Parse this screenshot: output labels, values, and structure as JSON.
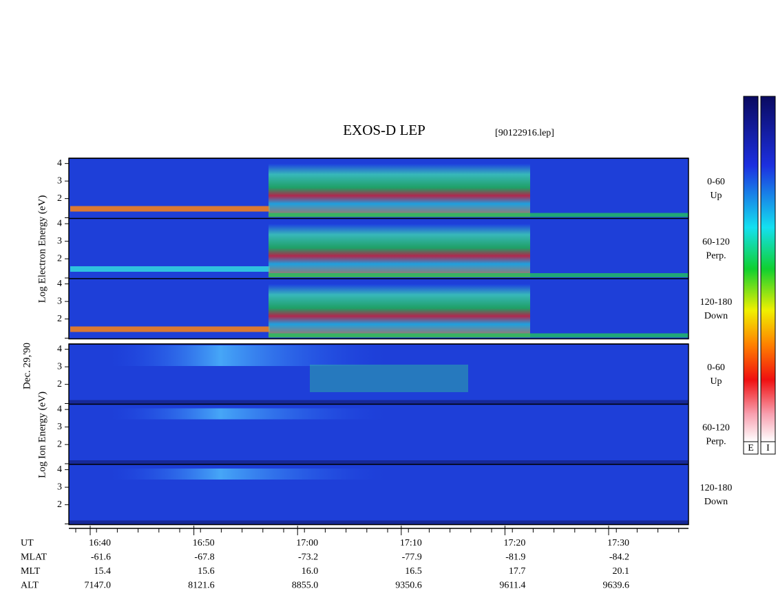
{
  "header": {
    "title": "EXOS-D LEP",
    "file": "[90122916.lep]",
    "date": "Dec. 29,'90"
  },
  "electron": {
    "ylabel": "Log Electron Energy (eV)",
    "panels": [
      {
        "label": [
          "0-60",
          "Up"
        ]
      },
      {
        "label": [
          "60-120",
          "Perp."
        ]
      },
      {
        "label": [
          "120-180",
          "Down"
        ]
      }
    ],
    "yticks": [
      2,
      3,
      4
    ]
  },
  "ion": {
    "ylabel": "Log Ion Energy (eV)",
    "panels": [
      {
        "label": [
          "0-60",
          "Up"
        ]
      },
      {
        "label": [
          "60-120",
          "Perp."
        ]
      },
      {
        "label": [
          "120-180",
          "Down"
        ]
      }
    ],
    "yticks": [
      2,
      3,
      4
    ]
  },
  "footer": {
    "rows": [
      {
        "name": "UT",
        "values": [
          "16:40",
          "16:50",
          "17:00",
          "17:10",
          "17:20",
          "17:30"
        ]
      },
      {
        "name": "MLAT",
        "values": [
          "-61.6",
          "-67.8",
          "-73.2",
          "-77.9",
          "-81.9",
          "-84.2"
        ]
      },
      {
        "name": "MLT",
        "values": [
          "15.4",
          "15.6",
          "16.0",
          "16.5",
          "17.7",
          "20.1"
        ]
      },
      {
        "name": "ALT",
        "values": [
          "7147.0",
          "8121.6",
          "8855.0",
          "9350.6",
          "9611.4",
          "9639.6"
        ]
      }
    ]
  },
  "colorbars": [
    "E",
    "I"
  ]
}
